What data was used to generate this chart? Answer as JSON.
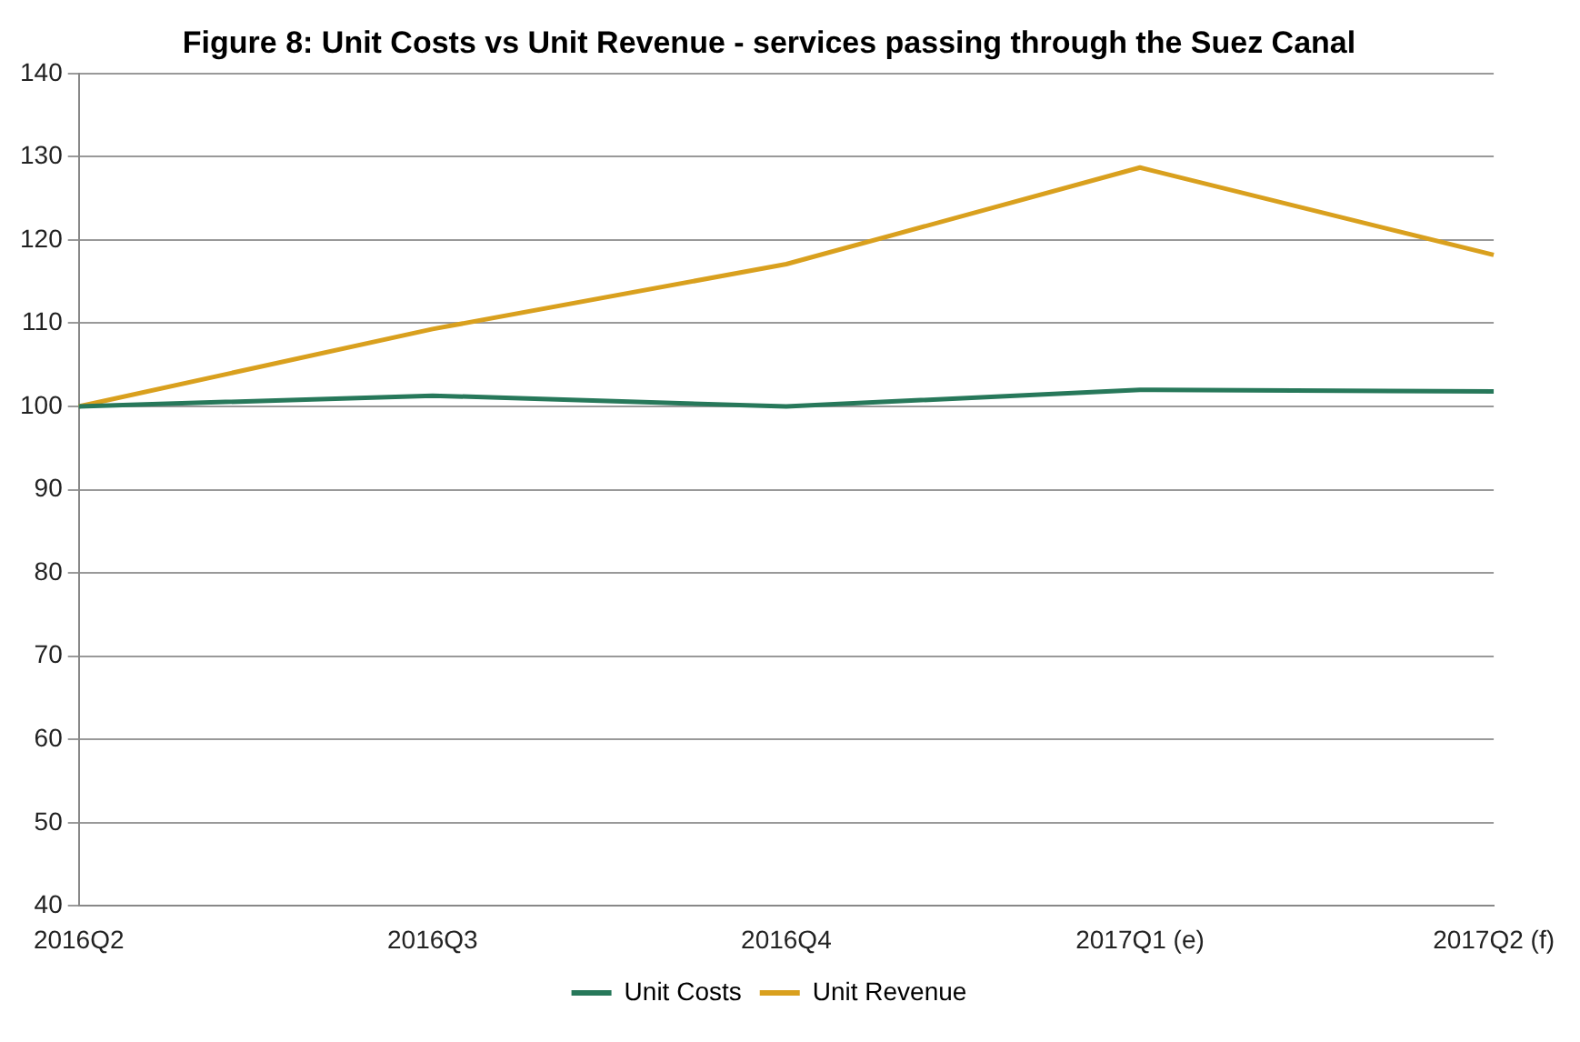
{
  "chart_data": {
    "type": "line",
    "title": "Figure 8: Unit Costs vs Unit Revenue - services passing through the Suez Canal",
    "categories": [
      "2016Q2",
      "2016Q3",
      "2016Q4",
      "2017Q1 (e)",
      "2017Q2 (f)"
    ],
    "series": [
      {
        "name": "Unit Costs",
        "color": "#27785a",
        "values": [
          100,
          101.3,
          100,
          102,
          101.8
        ]
      },
      {
        "name": "Unit Revenue",
        "color": "#d9a01e",
        "values": [
          100,
          109.3,
          117.1,
          128.7,
          118.2
        ]
      }
    ],
    "ylim": [
      40,
      140
    ],
    "yticks": [
      40,
      50,
      60,
      70,
      80,
      90,
      100,
      110,
      120,
      130,
      140
    ],
    "grid": "y",
    "legend": "bottom",
    "marker": "none",
    "line_style": "solid"
  }
}
